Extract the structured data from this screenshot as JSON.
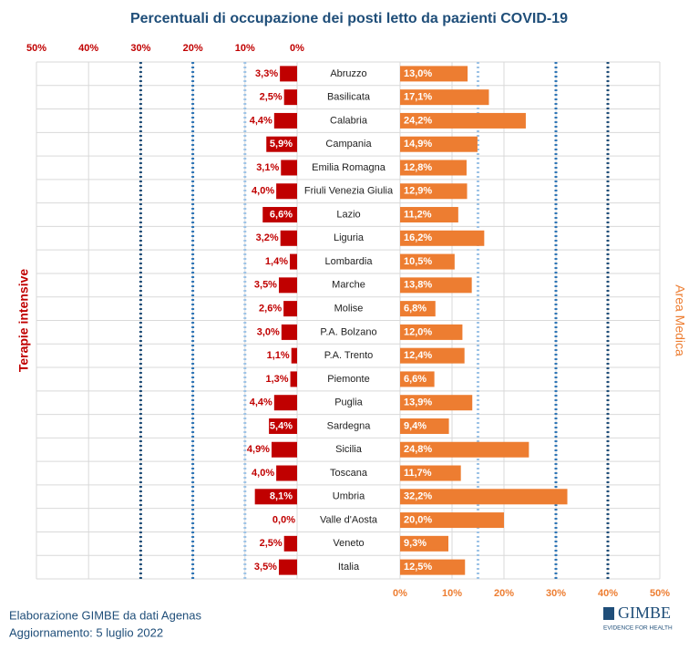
{
  "chart_data": {
    "type": "butterfly",
    "title": "Percentuali di occupazione dei posti letto da pazienti COVID-19",
    "categories": [
      "Abruzzo",
      "Basilicata",
      "Calabria",
      "Campania",
      "Emilia Romagna",
      "Friuli Venezia Giulia",
      "Lazio",
      "Liguria",
      "Lombardia",
      "Marche",
      "Molise",
      "P.A. Bolzano",
      "P.A. Trento",
      "Piemonte",
      "Puglia",
      "Sardegna",
      "Sicilia",
      "Toscana",
      "Umbria",
      "Valle d'Aosta",
      "Veneto",
      "Italia"
    ],
    "series": [
      {
        "name": "Terapie intensive",
        "color": "#c00000",
        "axis": "x2",
        "values": [
          3.3,
          2.5,
          4.4,
          5.9,
          3.1,
          4.0,
          6.6,
          3.2,
          1.4,
          3.5,
          2.6,
          3.0,
          1.1,
          1.3,
          4.4,
          5.4,
          4.9,
          4.0,
          8.1,
          0.0,
          2.5,
          3.5
        ],
        "value_labels": [
          "3,3%",
          "2,5%",
          "4,4%",
          "5,9%",
          "3,1%",
          "4,0%",
          "6,6%",
          "3,2%",
          "1,4%",
          "3,5%",
          "2,6%",
          "3,0%",
          "1,1%",
          "1,3%",
          "4,4%",
          "5,4%",
          "4,9%",
          "4,0%",
          "8,1%",
          "0,0%",
          "2,5%",
          "3,5%"
        ],
        "thresholds": [
          {
            "value": 10,
            "color": "#9dc3e6"
          },
          {
            "value": 20,
            "color": "#2e75b6"
          },
          {
            "value": 30,
            "color": "#1f4e79"
          }
        ]
      },
      {
        "name": "Area Medica",
        "color": "#ed7d31",
        "values": [
          13.0,
          17.1,
          24.2,
          14.9,
          12.8,
          12.9,
          11.2,
          16.2,
          10.5,
          13.8,
          6.8,
          12.0,
          12.4,
          6.6,
          13.9,
          9.4,
          24.8,
          11.7,
          32.2,
          20.0,
          9.3,
          12.5
        ],
        "value_labels": [
          "13,0%",
          "17,1%",
          "24,2%",
          "14,9%",
          "12,8%",
          "12,9%",
          "11,2%",
          "16,2%",
          "10,5%",
          "13,8%",
          "6,8%",
          "12,0%",
          "12,4%",
          "6,6%",
          "13,9%",
          "9,4%",
          "24,8%",
          "11,7%",
          "32,2%",
          "20,0%",
          "9,3%",
          "12,5%"
        ],
        "thresholds": [
          {
            "value": 15,
            "color": "#9dc3e6"
          },
          {
            "value": 30,
            "color": "#2e75b6"
          },
          {
            "value": 40,
            "color": "#1f4e79"
          }
        ]
      }
    ],
    "xlim": [
      0,
      50
    ],
    "xticks": [
      {
        "value": 0,
        "label": "0%"
      },
      {
        "value": 10,
        "label": "10%"
      },
      {
        "value": 20,
        "label": "20%"
      },
      {
        "value": 30,
        "label": "30%"
      },
      {
        "value": 40,
        "label": "40%"
      },
      {
        "value": 50,
        "label": "50%"
      }
    ],
    "x2lim": [
      0,
      50
    ],
    "x2ticks": [
      {
        "value": 0,
        "label": "0%"
      },
      {
        "value": 10,
        "label": "10%"
      },
      {
        "value": 20,
        "label": "20%"
      },
      {
        "value": 30,
        "label": "30%"
      },
      {
        "value": 40,
        "label": "40%"
      },
      {
        "value": 50,
        "label": "50%"
      }
    ],
    "grid": true
  },
  "footer": {
    "source": "Elaborazione GIMBE da dati Agenas",
    "update": "Aggiornamento: 5 luglio 2022",
    "logo": "GIMBE",
    "tagline": "EVIDENCE FOR HEALTH"
  }
}
